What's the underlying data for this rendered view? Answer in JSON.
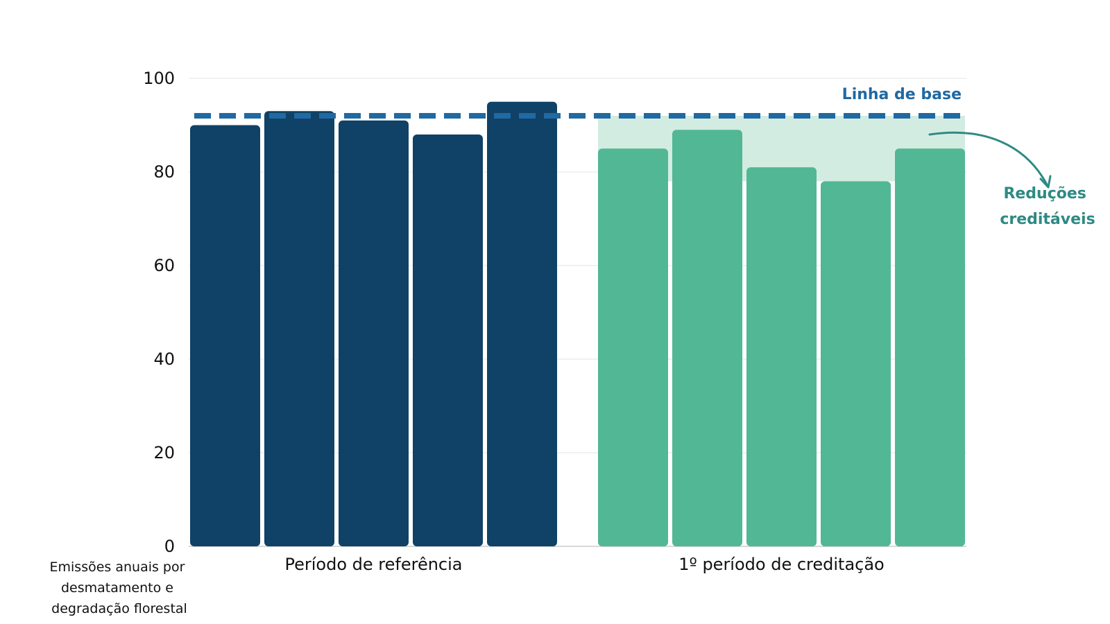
{
  "chart_data": {
    "type": "bar",
    "title": "",
    "xlabel": "",
    "ylabel_lines": [
      "Emissões anuais por",
      "desmatamento e",
      "degradação florestal"
    ],
    "ylim": [
      0,
      100
    ],
    "yticks": [
      0,
      20,
      40,
      60,
      80,
      100
    ],
    "grid": true,
    "groups": [
      {
        "label": "Período de referência",
        "color": "#0f4266",
        "values": [
          90,
          93,
          91,
          88,
          95
        ]
      },
      {
        "label": "1º período de creditação",
        "color": "#52b795",
        "values": [
          85,
          89,
          81,
          78,
          85
        ]
      }
    ],
    "baseline": {
      "label": "Linha de base",
      "value": 92,
      "color": "#2069a3"
    },
    "credited_reductions": {
      "label_lines": [
        "Reduções",
        "creditáveis"
      ],
      "range": [
        78,
        92
      ],
      "color": "#d3ece2",
      "label_color": "#2e8a84"
    }
  }
}
